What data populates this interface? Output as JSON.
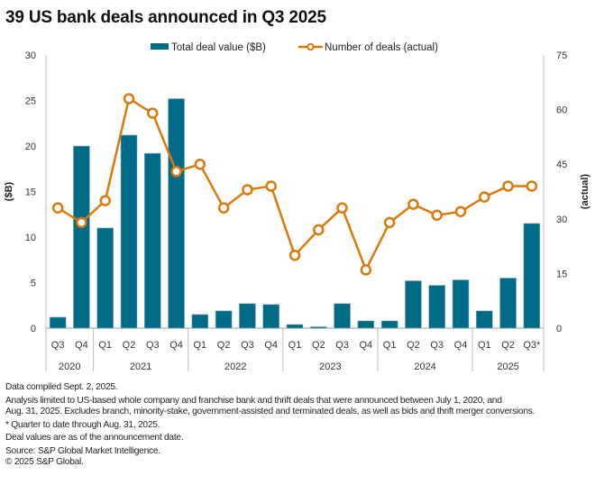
{
  "title": "39 US bank deals announced in Q3 2025",
  "colors": {
    "bar": "#006b87",
    "line": "#d97a0c",
    "axis": "#bfbfbf",
    "text": "#333333"
  },
  "chart_data": {
    "type": "bar+line",
    "title": "39 US bank deals announced in Q3 2025",
    "categories": [
      "Q3",
      "Q4",
      "Q1",
      "Q2",
      "Q3",
      "Q4",
      "Q1",
      "Q2",
      "Q3",
      "Q4",
      "Q1",
      "Q2",
      "Q3",
      "Q4",
      "Q1",
      "Q2",
      "Q3",
      "Q4",
      "Q1",
      "Q2",
      "Q3*"
    ],
    "year_groups": [
      {
        "label": "2020",
        "count": 2
      },
      {
        "label": "2021",
        "count": 4
      },
      {
        "label": "2022",
        "count": 4
      },
      {
        "label": "2023",
        "count": 4
      },
      {
        "label": "2024",
        "count": 4
      },
      {
        "label": "2025",
        "count": 3
      }
    ],
    "series": [
      {
        "name": "Total deal value ($B)",
        "type": "bar",
        "axis": "left",
        "values": [
          1.2,
          20.0,
          11.0,
          21.2,
          19.2,
          25.2,
          1.5,
          1.9,
          2.7,
          2.6,
          0.4,
          0.15,
          2.7,
          0.8,
          0.8,
          5.2,
          4.7,
          5.3,
          1.9,
          5.5,
          11.5
        ]
      },
      {
        "name": "Number of deals (actual)",
        "type": "line",
        "axis": "right",
        "values": [
          33,
          29,
          35,
          63,
          59,
          43,
          45,
          33,
          38,
          39,
          20,
          27,
          33,
          16,
          29,
          34,
          31,
          32,
          36,
          39,
          39
        ]
      }
    ],
    "left_axis": {
      "label": "($B)",
      "ylim": [
        0,
        30
      ],
      "ticks": [
        "0",
        "5",
        "10",
        "15",
        "20",
        "25",
        "30"
      ]
    },
    "right_axis": {
      "label": "(actual)",
      "ylim": [
        0,
        75
      ],
      "ticks": [
        "0",
        "15",
        "30",
        "45",
        "60",
        "75"
      ]
    },
    "legend": {
      "position": "top-center",
      "entries": [
        "Total deal value ($B)",
        "Number of deals (actual)"
      ]
    },
    "grid": false
  },
  "notes": {
    "compiled": "Data compiled Sept. 2, 2025.",
    "analysis_line1": "Analysis limited to US-based whole company and franchise bank and thrift deals that were announced between July 1, 2020, and",
    "analysis_line2": "Aug. 31, 2025. Excludes branch, minority-stake, government-assisted and terminated deals, as well as bids and thrift merger conversions.",
    "footnote": "* Quarter to date through Aug. 31, 2025.",
    "deal_values": "Deal values are as of the announcement date.",
    "source": "Source: S&P Global Market Intelligence.",
    "copyright": "© 2025 S&P Global."
  }
}
